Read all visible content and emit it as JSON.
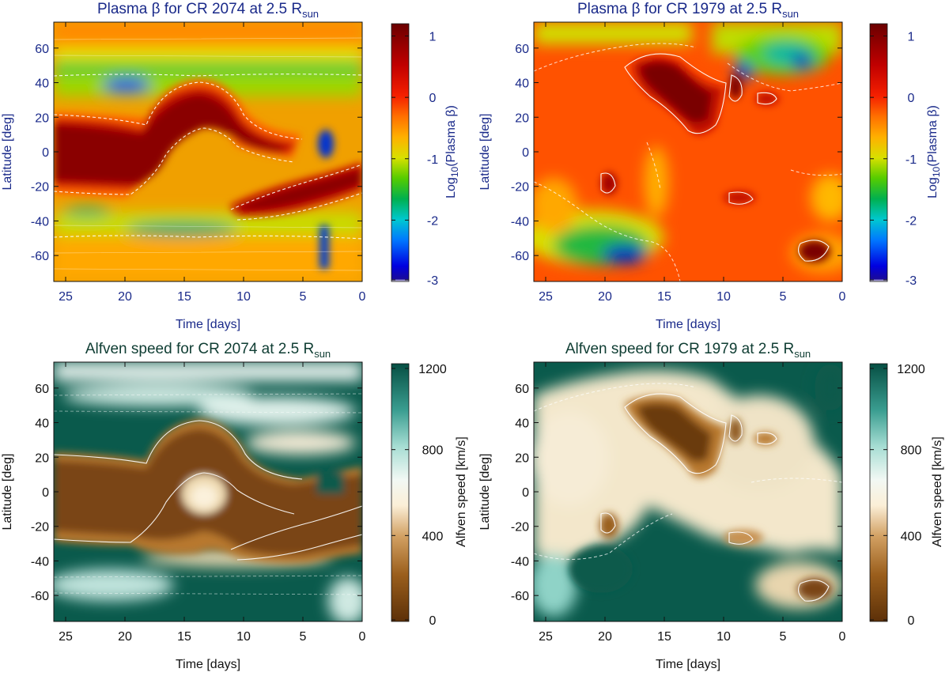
{
  "chart_data": [
    {
      "type": "heatmap",
      "title": "Plasma β for CR 2074 at 2.5 R",
      "title_subscript": "sun",
      "xlabel": "Time [days]",
      "ylabel": "Latitude [deg]",
      "xlim": [
        26,
        0
      ],
      "ylim": [
        -75,
        75
      ],
      "xticks": [
        25,
        20,
        15,
        10,
        5,
        0
      ],
      "yticks": [
        60,
        40,
        20,
        0,
        -20,
        -40,
        -60
      ],
      "colorbar": {
        "label": "Log10(Plasma β)",
        "label_main": "Log",
        "label_sub": "10",
        "label_rest": "(Plasma β)",
        "ticks": [
          1,
          0,
          -1,
          -2,
          -3
        ],
        "range": [
          -3,
          1.2
        ],
        "colormap": "rainbow"
      },
      "contour_color": "#ffffff"
    },
    {
      "type": "heatmap",
      "title": "Plasma β for CR 1979 at 2.5 R",
      "title_subscript": "sun",
      "xlabel": "Time [days]",
      "ylabel": "Latitude [deg]",
      "xlim": [
        26,
        0
      ],
      "ylim": [
        -75,
        75
      ],
      "xticks": [
        25,
        20,
        15,
        10,
        5,
        0
      ],
      "yticks": [
        60,
        40,
        20,
        0,
        -20,
        -40,
        -60
      ],
      "colorbar": {
        "label": "Log10(Plasma β)",
        "label_main": "Log",
        "label_sub": "10",
        "label_rest": "(Plasma β)",
        "ticks": [
          1,
          0,
          -1,
          -2,
          -3
        ],
        "range": [
          -3,
          1.2
        ],
        "colormap": "rainbow"
      },
      "contour_color": "#ffffff"
    },
    {
      "type": "heatmap",
      "title": "Alfven speed for CR 2074 at 2.5 R",
      "title_subscript": "sun",
      "xlabel": "Time [days]",
      "ylabel": "Latitude [deg]",
      "xlim": [
        26,
        0
      ],
      "ylim": [
        -75,
        75
      ],
      "xticks": [
        25,
        20,
        15,
        10,
        5,
        0
      ],
      "yticks": [
        60,
        40,
        20,
        0,
        -20,
        -40,
        -60
      ],
      "colorbar": {
        "label": "Alfven speed [km/s]",
        "ticks": [
          1200,
          800,
          400,
          0
        ],
        "range": [
          0,
          1200
        ],
        "colormap": "brown-white-teal"
      },
      "contour_color": "#ffffff"
    },
    {
      "type": "heatmap",
      "title": "Alfven speed for CR 1979 at 2.5 R",
      "title_subscript": "sun",
      "xlabel": "Time [days]",
      "ylabel": "Latitude [deg]",
      "xlim": [
        26,
        0
      ],
      "ylim": [
        -75,
        75
      ],
      "xticks": [
        25,
        20,
        15,
        10,
        5,
        0
      ],
      "yticks": [
        60,
        40,
        20,
        0,
        -20,
        -40,
        -60
      ],
      "colorbar": {
        "label": "Alfven speed [km/s]",
        "ticks": [
          1200,
          800,
          400,
          0
        ],
        "range": [
          0,
          1200
        ],
        "colormap": "brown-white-teal"
      },
      "contour_color": "#ffffff"
    }
  ]
}
